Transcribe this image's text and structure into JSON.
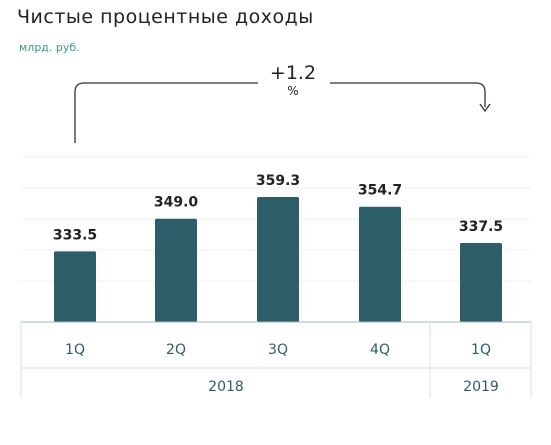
{
  "title": "Чистые процентные доходы",
  "subtitle": "млрд. руб.",
  "change": {
    "value": "+1.2",
    "unit": "%"
  },
  "chart_data": {
    "type": "bar",
    "categories": [
      "1Q",
      "2Q",
      "3Q",
      "4Q",
      "1Q"
    ],
    "groups": [
      {
        "label": "2018",
        "categories": [
          "1Q",
          "2Q",
          "3Q",
          "4Q"
        ]
      },
      {
        "label": "2019",
        "categories": [
          "1Q"
        ]
      }
    ],
    "series": [
      {
        "values": [
          333.5,
          349.0,
          359.3,
          354.7,
          337.5
        ],
        "labels": [
          "333.5",
          "349.0",
          "359.3",
          "354.7",
          "337.5"
        ]
      }
    ],
    "ylim": [
      300,
      365
    ],
    "grid": true
  },
  "colors": {
    "bar": "#2b5e66",
    "grid": "#cfd6d6",
    "axis": "#9fb8b4",
    "text": "#222222",
    "accent": "#3a9a86"
  }
}
